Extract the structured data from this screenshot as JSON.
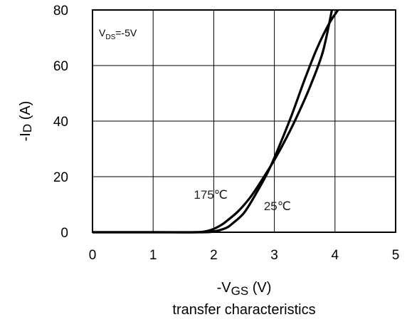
{
  "chart_data": {
    "type": "line",
    "title": "",
    "caption": "transfer characteristics",
    "xlabel": {
      "prefix": "-V",
      "sub": "GS",
      "suffix": " (V)"
    },
    "ylabel": {
      "prefix": "-I",
      "sub": "D",
      "suffix": " (A)"
    },
    "xlim": [
      0,
      5
    ],
    "ylim": [
      0,
      80
    ],
    "xticks": [
      "0",
      "1",
      "2",
      "3",
      "4",
      "5"
    ],
    "yticks": [
      "0",
      "20",
      "40",
      "60",
      "80"
    ],
    "grid": true,
    "condition": {
      "prefix": "V",
      "sub": "DS",
      "suffix": "=-5V"
    },
    "series": [
      {
        "name": "175℃",
        "x": [
          0,
          1.0,
          1.7,
          1.9,
          2.0,
          2.1,
          2.2,
          2.4,
          2.6,
          2.8,
          3.0,
          3.2,
          3.4,
          3.6,
          3.8,
          3.95
        ],
        "y": [
          0,
          0,
          0,
          0.5,
          1.2,
          2.3,
          3.8,
          7.5,
          12.5,
          19,
          26,
          34,
          43,
          53,
          65,
          80
        ]
      },
      {
        "name": "25℃",
        "x": [
          0,
          1.0,
          1.8,
          2.0,
          2.2,
          2.3,
          2.5,
          2.7,
          2.9,
          3.1,
          3.3,
          3.5,
          3.7,
          3.9,
          4.05
        ],
        "y": [
          0,
          0,
          0,
          0.3,
          1.5,
          3.0,
          7.0,
          14,
          22,
          32,
          43,
          55,
          66,
          75,
          80
        ]
      }
    ],
    "annotations": [
      {
        "text": "175℃",
        "x": 1.95,
        "y": 12,
        "series": "175℃"
      },
      {
        "text": "25℃",
        "x": 3.05,
        "y": 8,
        "series": "25℃"
      }
    ]
  }
}
